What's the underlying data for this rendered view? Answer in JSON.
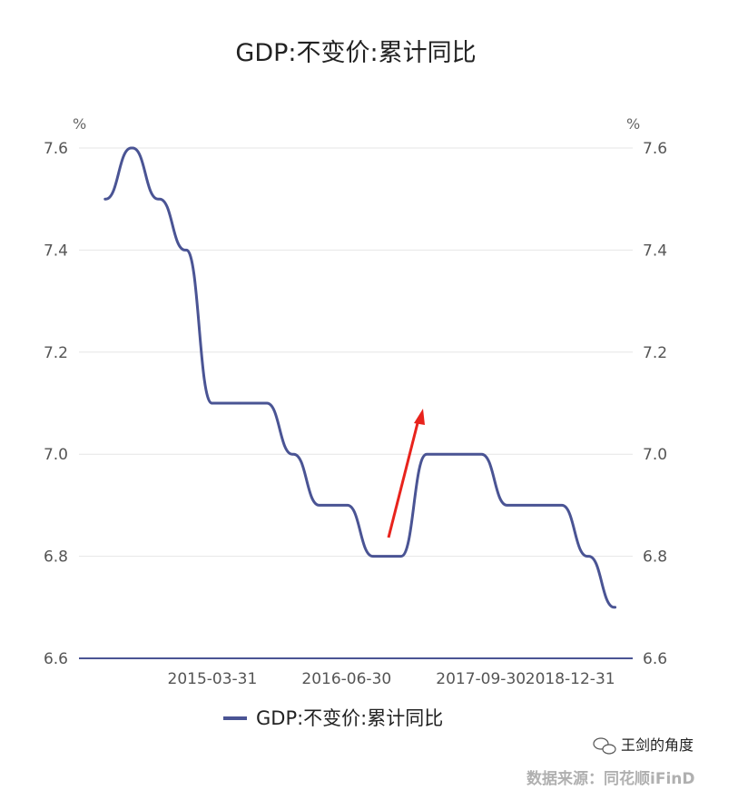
{
  "chart_data": {
    "type": "line",
    "title": "GDP:不变价:累计同比",
    "y_unit": "%",
    "ylim": [
      6.6,
      7.6
    ],
    "y_ticks": [
      "7.6",
      "7.4",
      "7.2",
      "7.0",
      "6.8",
      "6.6"
    ],
    "x_tick_labels": [
      "2015-03-31",
      "2016-06-30",
      "2017-09-30",
      "2018-12-31"
    ],
    "grid": true,
    "legend_position": "bottom",
    "series": [
      {
        "name": "GDP:不变价:累计同比",
        "color": "#4a5494",
        "x": [
          "2014-03-31",
          "2014-06-30",
          "2014-09-30",
          "2014-12-31",
          "2015-03-31",
          "2015-06-30",
          "2015-09-30",
          "2015-12-31",
          "2016-03-31",
          "2016-06-30",
          "2016-09-30",
          "2016-12-31",
          "2017-03-31",
          "2017-06-30",
          "2017-09-30",
          "2017-12-31",
          "2018-03-31",
          "2018-06-30",
          "2018-09-30",
          "2018-12-31"
        ],
        "values": [
          7.5,
          7.6,
          7.5,
          7.4,
          7.1,
          7.1,
          7.1,
          7.0,
          6.9,
          6.9,
          6.8,
          6.8,
          7.0,
          7.0,
          7.0,
          6.9,
          6.9,
          6.9,
          6.8,
          6.7
        ]
      }
    ],
    "annotation": {
      "type": "arrow",
      "color": "#e8231c"
    }
  },
  "watermark": {
    "account": "王剑的角度",
    "source": "数据来源：同花顺iFinD"
  }
}
